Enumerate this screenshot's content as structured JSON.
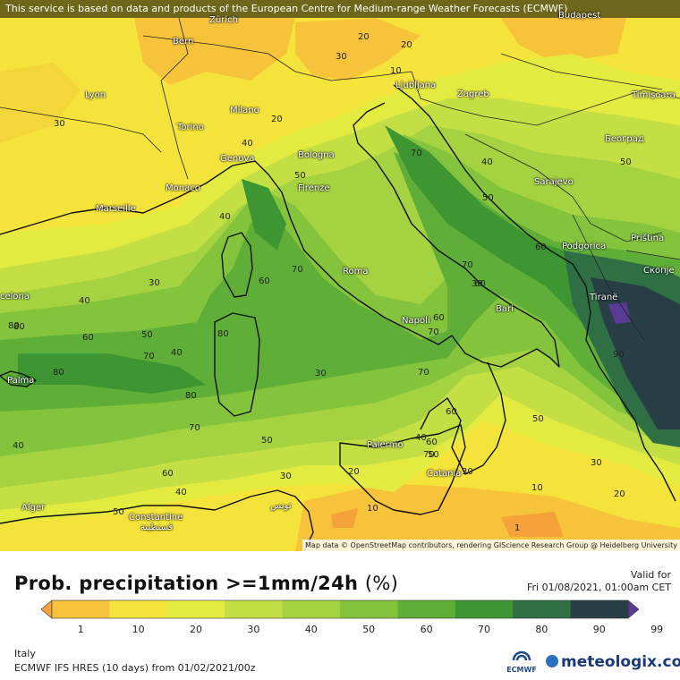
{
  "banner": "This service is based on data and products of the European Centre for Medium-range Weather Forecasts (ECMWF)",
  "attribution": "Map data © OpenStreetMap contributors, rendering GIScience Research Group @ Heidelberg University",
  "cities": [
    "Zürich",
    "Budapest",
    "Bern",
    "Lyon",
    "Ljubljana",
    "Zagreb",
    "Timișoara",
    "Milano",
    "Torino",
    "Београд",
    "Genova",
    "Bologna",
    "Sarajevo",
    "Monaco",
    "Firenze",
    "Marseille",
    "Podgorica",
    "Priština",
    "Скопје",
    "Roma",
    "Tiranë",
    "Bari",
    "Napoli",
    "Palma",
    "Palermo",
    "Catania",
    "Alger",
    "Constantine",
    "قسنطينة",
    "تونس",
    "celona"
  ],
  "contour_labels": [
    "20",
    "20",
    "30",
    "10",
    "20",
    "30",
    "40",
    "50",
    "70",
    "40",
    "50",
    "40",
    "60",
    "30",
    "40",
    "50",
    "60",
    "70",
    "70",
    "60",
    "60",
    "80",
    "70",
    "80",
    "40",
    "50",
    "80",
    "70",
    "80",
    "60",
    "70",
    "90",
    "50",
    "70",
    "60",
    "40",
    "30",
    "50",
    "70",
    "60",
    "30",
    "40",
    "30",
    "60",
    "30",
    "50",
    "20",
    "40",
    "50",
    "10",
    "10",
    "20",
    "30",
    "1",
    "80"
  ],
  "title": "Prob. precipitation >=1mm/24h",
  "title_unit": "(%)",
  "valid_label": "Valid for",
  "valid_time": "Fri 01/08/2021, 01:00am CET",
  "legend": {
    "ticks": [
      "1",
      "10",
      "20",
      "30",
      "40",
      "50",
      "60",
      "70",
      "80",
      "90",
      "99"
    ],
    "colors": [
      "#f5a23a",
      "#f7c33b",
      "#f4e33a",
      "#e4eb40",
      "#c4df44",
      "#a5d241",
      "#84c43d",
      "#5fae38",
      "#3e9632",
      "#2e6f43",
      "#273f45",
      "#5a3a94"
    ]
  },
  "region": "Italy",
  "model": "ECMWF IFS HRES (10 days) from 01/02/2021/00z",
  "ecmwf_logo": "ECMWF",
  "brand": "meteologix.com"
}
